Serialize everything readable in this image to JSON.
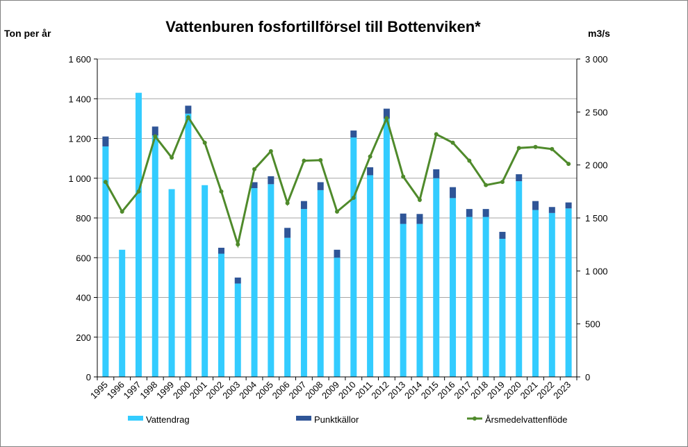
{
  "chart_data": {
    "type": "bar",
    "stacked": true,
    "title": "Vattenburen fosfortillförsel till Bottenviken*",
    "ylabel": "Ton per år",
    "y2label": "m3/s",
    "ylim": [
      0,
      1600
    ],
    "y2lim": [
      0,
      3000
    ],
    "yticks": [
      "0",
      "200",
      "400",
      "600",
      "800",
      "1 000",
      "1 200",
      "1 400",
      "1 600"
    ],
    "y2ticks": [
      "0",
      "500",
      "1 000",
      "1 500",
      "2 000",
      "2 500",
      "3 000"
    ],
    "grid": true,
    "legend_position": "bottom",
    "categories": [
      "1995",
      "1996",
      "1997",
      "1998",
      "1999",
      "2000",
      "2001",
      "2002",
      "2003",
      "2004",
      "2005",
      "2006",
      "2007",
      "2008",
      "2009",
      "2010",
      "2011",
      "2012",
      "2013",
      "2014",
      "2015",
      "2016",
      "2017",
      "2018",
      "2019",
      "2020",
      "2021",
      "2022",
      "2023"
    ],
    "series": [
      {
        "name": "Vattendrag",
        "type": "bar",
        "color": "#33ccff",
        "values": [
          1160,
          640,
          1430,
          1215,
          945,
          1325,
          965,
          620,
          470,
          950,
          970,
          700,
          845,
          940,
          600,
          1205,
          1015,
          1300,
          770,
          770,
          1000,
          900,
          805,
          805,
          695,
          985,
          840,
          825,
          848
        ]
      },
      {
        "name": "Punktkällor",
        "type": "bar",
        "color": "#2f5597",
        "values": [
          50,
          0,
          0,
          45,
          0,
          40,
          0,
          30,
          30,
          30,
          40,
          50,
          40,
          40,
          40,
          35,
          40,
          50,
          52,
          50,
          45,
          55,
          40,
          40,
          35,
          35,
          45,
          30,
          30
        ]
      },
      {
        "name": "Årsmedelvattenflöde",
        "type": "line",
        "axis": "right",
        "color": "#4f8a2b",
        "values": [
          1840,
          1560,
          1750,
          2270,
          2070,
          2450,
          2210,
          1750,
          1250,
          1960,
          2130,
          1640,
          2040,
          2045,
          1560,
          1690,
          2080,
          2440,
          1890,
          1670,
          2290,
          2210,
          2040,
          1810,
          1840,
          2160,
          2170,
          2150,
          2010
        ]
      }
    ]
  }
}
